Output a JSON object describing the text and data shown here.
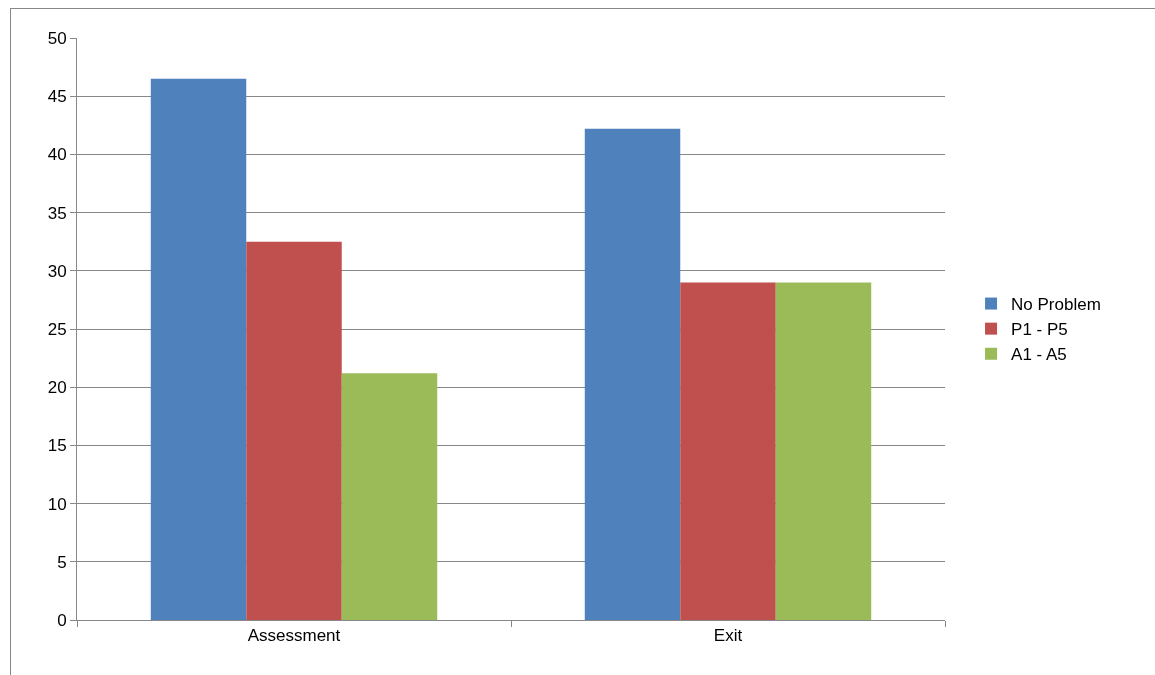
{
  "chart_data": {
    "type": "bar",
    "categories": [
      "Assessment",
      "Exit"
    ],
    "series": [
      {
        "name": "No Problem",
        "color": "#4f81bd",
        "values": [
          46.5,
          42.2
        ]
      },
      {
        "name": "P1 - P5",
        "color": "#c0504d",
        "values": [
          32.5,
          29
        ]
      },
      {
        "name": "A1 - A5",
        "color": "#9bbb59",
        "values": [
          21.2,
          29
        ]
      }
    ],
    "ylim": [
      0,
      50
    ],
    "yticks": [
      0,
      5,
      10,
      15,
      20,
      25,
      30,
      35,
      40,
      45,
      50
    ],
    "grid": "y",
    "legend": "right"
  }
}
